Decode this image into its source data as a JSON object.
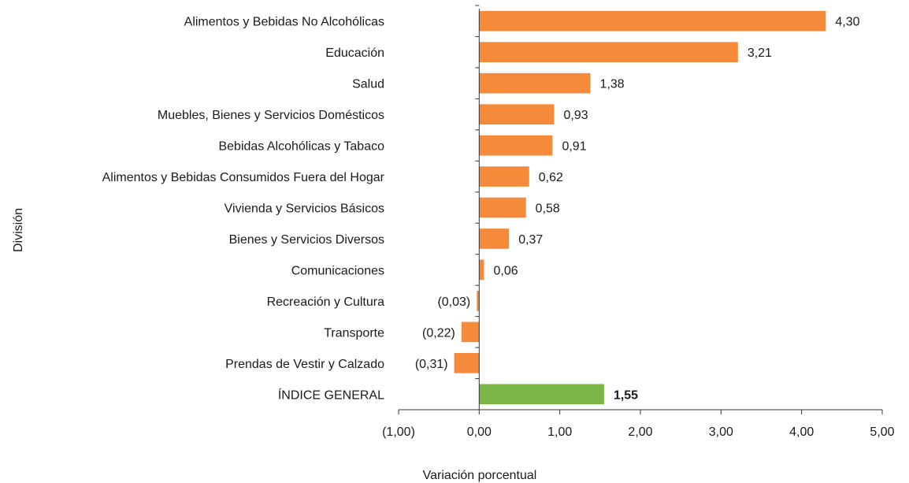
{
  "chart_data": {
    "type": "bar",
    "orientation": "horizontal",
    "categories": [
      "Alimentos y Bebidas No Alcohólicas",
      "Educación",
      "Salud",
      "Muebles, Bienes y Servicios Domésticos",
      "Bebidas Alcohólicas y Tabaco",
      "Alimentos y Bebidas Consumidos Fuera del Hogar",
      "Vivienda y Servicios Básicos",
      "Bienes y Servicios Diversos",
      "Comunicaciones",
      "Recreación y Cultura",
      "Transporte",
      "Prendas de Vestir y Calzado",
      "ÍNDICE GENERAL"
    ],
    "values": [
      4.3,
      3.21,
      1.38,
      0.93,
      0.91,
      0.62,
      0.58,
      0.37,
      0.06,
      -0.03,
      -0.22,
      -0.31,
      1.55
    ],
    "value_labels": [
      "4,30",
      "3,21",
      "1,38",
      "0,93",
      "0,91",
      "0,62",
      "0,58",
      "0,37",
      "0,06",
      "(0,03)",
      "(0,22)",
      "(0,31)",
      "1,55"
    ],
    "bar_colors": [
      "#F58A3A",
      "#F58A3A",
      "#F58A3A",
      "#F58A3A",
      "#F58A3A",
      "#F58A3A",
      "#F58A3A",
      "#F58A3A",
      "#F58A3A",
      "#F58A3A",
      "#F58A3A",
      "#F58A3A",
      "#7AB648"
    ],
    "highlight_index": 12,
    "xlabel": "Variación porcentual",
    "ylabel": "División",
    "xlim": [
      -1.0,
      5.0
    ],
    "xticks": [
      -1,
      0,
      1,
      2,
      3,
      4,
      5
    ],
    "xtick_labels": [
      "(1,00)",
      "0,00",
      "1,00",
      "2,00",
      "3,00",
      "4,00",
      "5,00"
    ],
    "grid": false,
    "legend": "none"
  }
}
